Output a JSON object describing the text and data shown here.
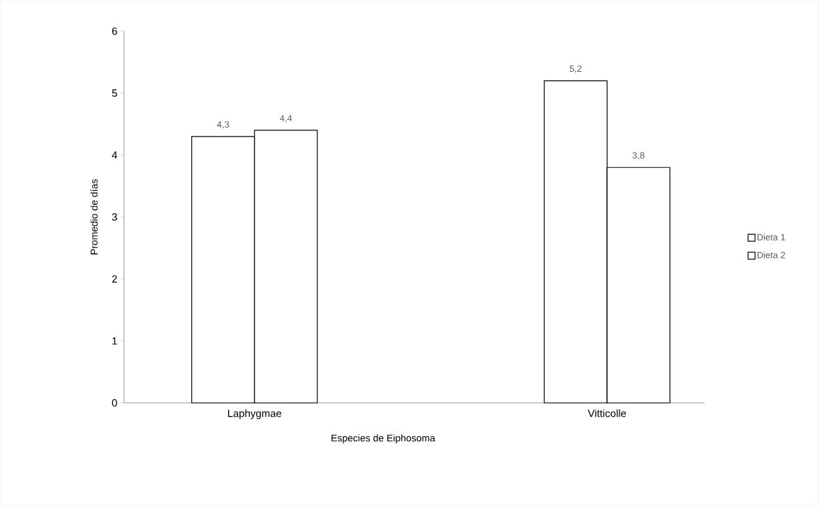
{
  "chart_data": {
    "type": "bar",
    "xlabel": "Especies de Eiphosoma",
    "ylabel": "Promedio de días",
    "categories": [
      "Laphygmae",
      "Vitticolle"
    ],
    "series": [
      {
        "name": "Dieta 1",
        "color": "#000000",
        "values": [
          4.3,
          5.2
        ],
        "value_labels": [
          "4,3",
          "5,2"
        ]
      },
      {
        "name": "Dieta 2",
        "color": "#000000",
        "values": [
          4.4,
          3.8
        ],
        "value_labels": [
          "4,4",
          "3,8"
        ]
      }
    ],
    "ylim": [
      0,
      6
    ],
    "yticks": [
      0,
      1,
      2,
      3,
      4,
      5,
      6
    ],
    "legend": "right"
  }
}
